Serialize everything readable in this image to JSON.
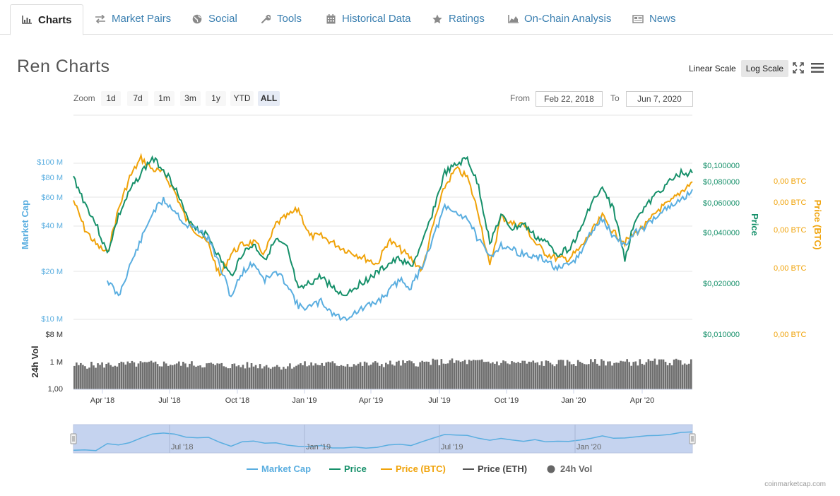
{
  "tabs": [
    {
      "label": "Charts",
      "icon": "bar-chart-icon",
      "active": true
    },
    {
      "label": "Market Pairs",
      "icon": "arrows-exchange-icon",
      "active": false
    },
    {
      "label": "Social",
      "icon": "globe-icon",
      "active": false
    },
    {
      "label": "Tools",
      "icon": "wrench-icon",
      "active": false
    },
    {
      "label": "Historical Data",
      "icon": "calendar-icon",
      "active": false
    },
    {
      "label": "Ratings",
      "icon": "star-icon",
      "active": false
    },
    {
      "label": "On-Chain Analysis",
      "icon": "area-chart-icon",
      "active": false
    },
    {
      "label": "News",
      "icon": "newspaper-icon",
      "active": false
    }
  ],
  "title": "Ren Charts",
  "scale": {
    "linear": "Linear Scale",
    "log": "Log Scale",
    "active": "log"
  },
  "zoom": {
    "label": "Zoom",
    "options": [
      "1d",
      "7d",
      "1m",
      "3m",
      "1y",
      "YTD",
      "ALL"
    ],
    "active": "ALL"
  },
  "range": {
    "from_label": "From",
    "from": "Feb 22, 2018",
    "to_label": "To",
    "to": "Jun 7, 2020"
  },
  "footer": "coinmarketcap.com",
  "colors": {
    "market_cap": "#5aaee0",
    "price": "#16906a",
    "price_btc": "#f0a30a",
    "price_eth": "#555555",
    "volume": "#6e6e6e",
    "navigator_fill": "#c5d3ef"
  },
  "chart_data": {
    "type": "line",
    "scale": "log",
    "x_axis": {
      "ticks": [
        "Apr '18",
        "Jul '18",
        "Oct '18",
        "Jan '19",
        "Apr '19",
        "Jul '19",
        "Oct '19",
        "Jan '20",
        "Apr '20"
      ]
    },
    "y_axes": {
      "market_cap": {
        "title": "Market Cap",
        "ticks": [
          "$100 M",
          "$80 M",
          "$60 M",
          "$40 M",
          "$20 M",
          "$10 M"
        ]
      },
      "price": {
        "title": "Price",
        "ticks": [
          "$0,100000",
          "$0,080000",
          "$0,060000",
          "$0,040000",
          "$0,020000",
          "$0,010000"
        ]
      },
      "price_btc": {
        "title": "Price (BTC)",
        "ticks": [
          "0,00 BTC",
          "0,00 BTC",
          "0,00 BTC",
          "0,00 BTC",
          "0,00 BTC"
        ]
      },
      "volume": {
        "title": "24h Vol",
        "ticks": [
          "$8 M",
          "1 M",
          "1,00"
        ]
      }
    },
    "legend": {
      "position": "bottom",
      "items": [
        {
          "name": "Market Cap",
          "marker": "line",
          "color": "#5aaee0"
        },
        {
          "name": "Price",
          "marker": "line",
          "color": "#16906a"
        },
        {
          "name": "Price (BTC)",
          "marker": "line",
          "color": "#f0a30a"
        },
        {
          "name": "Price (ETH)",
          "marker": "line",
          "color": "#555555"
        },
        {
          "name": "24h Vol",
          "marker": "dot",
          "color": "#666666"
        }
      ]
    },
    "navigator_ticks": [
      "Jul '18",
      "Jan '19",
      "Jul '19",
      "Jan '20"
    ],
    "x_months": [
      0,
      0.5,
      1,
      1.5,
      2,
      2.5,
      3,
      3.5,
      4,
      4.5,
      5,
      5.5,
      6,
      6.5,
      7,
      7.5,
      8,
      8.5,
      9,
      9.5,
      10,
      10.5,
      11,
      11.5,
      12,
      12.5,
      13,
      13.5,
      14,
      14.5,
      15,
      15.5,
      16,
      16.5,
      17,
      17.5,
      18,
      18.5,
      19,
      19.5,
      20,
      20.5,
      21,
      21.5,
      22,
      22.5,
      23,
      23.5,
      24,
      24.5,
      25,
      25.5,
      26,
      26.5,
      27,
      27.5
    ],
    "series": [
      {
        "key": "market_cap",
        "unit": "USD M",
        "values": [
          null,
          null,
          null,
          18,
          14,
          22,
          32,
          48,
          58,
          50,
          40,
          38,
          33,
          22,
          14,
          20,
          23,
          18,
          20,
          17,
          12,
          12,
          13,
          11,
          10,
          11,
          12,
          13,
          15,
          18,
          16,
          22,
          34,
          52,
          48,
          45,
          32,
          25,
          30,
          28,
          26,
          25,
          24,
          21,
          22,
          26,
          36,
          44,
          34,
          30,
          36,
          40,
          48,
          52,
          58,
          68
        ]
      },
      {
        "key": "price",
        "unit": "USD",
        "values": [
          0.085,
          0.06,
          0.045,
          0.03,
          0.05,
          0.07,
          0.09,
          0.11,
          0.095,
          0.075,
          0.05,
          0.042,
          0.038,
          0.028,
          0.022,
          0.03,
          0.034,
          0.028,
          0.036,
          0.032,
          0.018,
          0.02,
          0.022,
          0.019,
          0.017,
          0.019,
          0.021,
          0.023,
          0.026,
          0.028,
          0.025,
          0.034,
          0.055,
          0.09,
          0.1,
          0.11,
          0.075,
          0.035,
          0.05,
          0.042,
          0.045,
          0.038,
          0.035,
          0.03,
          0.032,
          0.04,
          0.06,
          0.072,
          0.055,
          0.028,
          0.05,
          0.058,
          0.07,
          0.08,
          0.09,
          0.09
        ]
      },
      {
        "key": "price_btc",
        "unit": "relative",
        "values": [
          0.062,
          0.042,
          0.034,
          0.03,
          0.055,
          0.085,
          0.11,
          0.095,
          0.09,
          0.07,
          0.048,
          0.04,
          0.034,
          0.022,
          0.03,
          0.034,
          0.035,
          0.03,
          0.045,
          0.05,
          0.055,
          0.038,
          0.038,
          0.035,
          0.032,
          0.03,
          0.028,
          0.026,
          0.036,
          0.032,
          0.028,
          0.024,
          0.045,
          0.075,
          0.095,
          0.085,
          0.052,
          0.025,
          0.05,
          0.045,
          0.045,
          0.035,
          0.03,
          0.028,
          0.028,
          0.032,
          0.04,
          0.05,
          0.04,
          0.035,
          0.04,
          0.045,
          0.055,
          0.06,
          0.07,
          0.08
        ]
      },
      {
        "key": "volume",
        "unit": "USD M",
        "values": [
          0.6,
          0.6,
          0.65,
          0.7,
          0.75,
          0.8,
          0.85,
          0.9,
          0.9,
          0.85,
          0.8,
          0.75,
          0.7,
          0.6,
          0.55,
          0.55,
          0.6,
          0.55,
          0.5,
          0.45,
          0.7,
          0.75,
          0.8,
          0.85,
          0.8,
          0.75,
          0.8,
          0.85,
          0.9,
          1.0,
          1.05,
          1.1,
          1.4,
          1.5,
          1.55,
          1.5,
          1.4,
          1.3,
          1.25,
          1.2,
          1.15,
          1.1,
          1.05,
          1.1,
          1.15,
          1.2,
          1.25,
          1.3,
          1.3,
          1.35,
          1.35,
          1.4,
          1.4,
          1.45,
          1.45,
          1.5
        ]
      }
    ]
  }
}
